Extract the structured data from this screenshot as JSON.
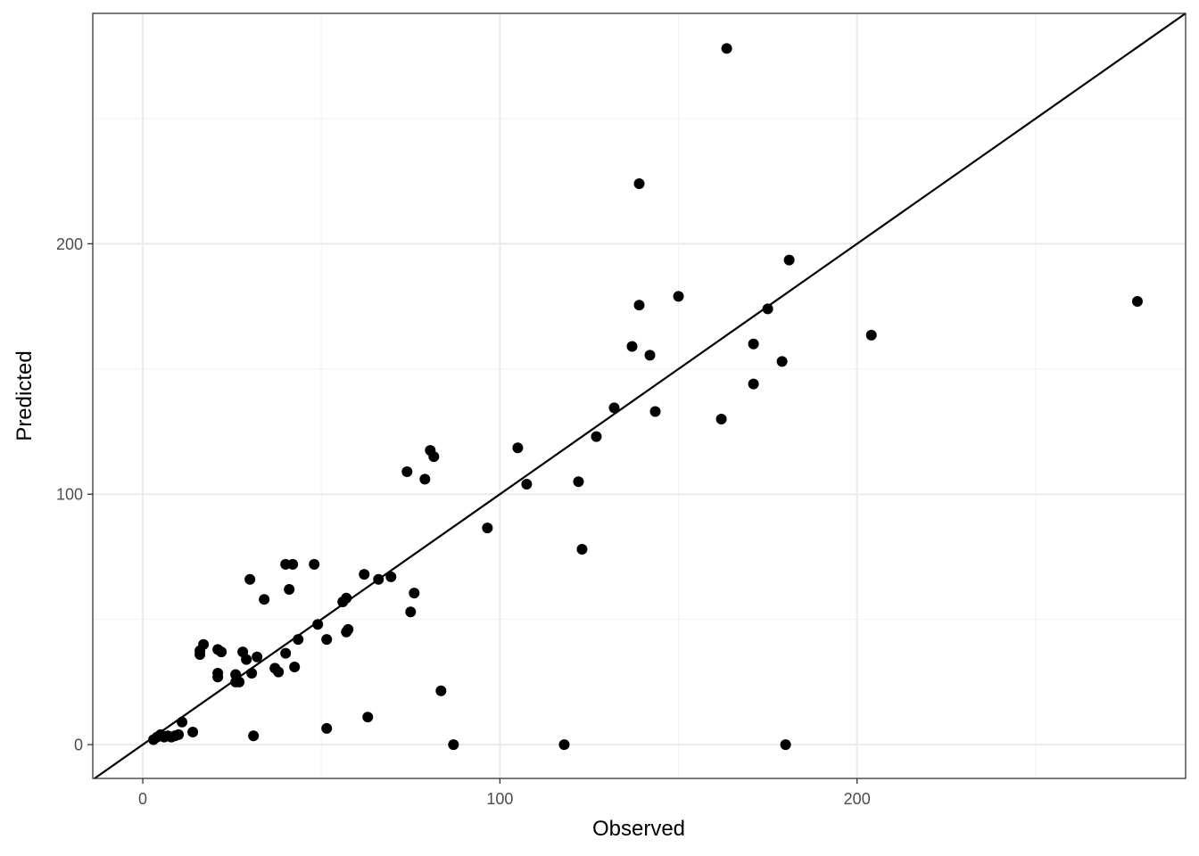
{
  "chart_data": {
    "type": "scatter",
    "title": "",
    "xlabel": "Observed",
    "ylabel": "Predicted",
    "xlim": [
      -14,
      292
    ],
    "ylim": [
      -13.5,
      292
    ],
    "x_ticks": [
      {
        "value": 0,
        "label": "0"
      },
      {
        "value": 100,
        "label": "100"
      },
      {
        "value": 200,
        "label": "200"
      }
    ],
    "y_ticks": [
      {
        "value": 0,
        "label": "0"
      },
      {
        "value": 100,
        "label": "100"
      },
      {
        "value": 200,
        "label": "200"
      }
    ],
    "x_minor_grid": [
      50,
      150,
      250
    ],
    "y_minor_grid": [
      50,
      150,
      250
    ],
    "grid": true,
    "reference_line": {
      "type": "identity",
      "slope": 1,
      "intercept": 0
    },
    "colors": {
      "points": "#000000",
      "line": "#000000",
      "major_grid": "#ebebeb",
      "minor_grid": "#f2f2f2",
      "panel_border": "#333333"
    },
    "series": [
      {
        "points": [
          [
            3,
            2
          ],
          [
            4,
            3
          ],
          [
            5,
            4
          ],
          [
            6,
            3
          ],
          [
            7,
            3.5
          ],
          [
            8,
            3
          ],
          [
            9,
            3.5
          ],
          [
            10,
            4
          ],
          [
            11,
            9
          ],
          [
            14,
            5
          ],
          [
            16,
            36
          ],
          [
            16,
            37.5
          ],
          [
            17,
            40
          ],
          [
            21,
            27
          ],
          [
            21,
            28.5
          ],
          [
            21,
            38
          ],
          [
            22,
            37
          ],
          [
            26,
            28
          ],
          [
            26,
            25
          ],
          [
            27,
            25
          ],
          [
            28,
            37
          ],
          [
            29,
            34
          ],
          [
            30,
            66
          ],
          [
            30.5,
            28.5
          ],
          [
            31,
            3.5
          ],
          [
            32,
            35
          ],
          [
            34,
            58
          ],
          [
            37,
            30.5
          ],
          [
            38,
            29
          ],
          [
            40,
            36.5
          ],
          [
            40,
            72
          ],
          [
            41,
            62
          ],
          [
            42,
            72
          ],
          [
            42.5,
            31
          ],
          [
            43.5,
            42
          ],
          [
            48,
            72
          ],
          [
            49,
            48
          ],
          [
            51.5,
            42
          ],
          [
            51.5,
            6.5
          ],
          [
            56,
            57
          ],
          [
            57,
            58.5
          ],
          [
            57,
            45
          ],
          [
            57.5,
            46
          ],
          [
            62,
            68
          ],
          [
            63,
            11
          ],
          [
            66,
            66
          ],
          [
            69.5,
            67
          ],
          [
            74,
            109
          ],
          [
            75,
            53
          ],
          [
            76,
            60.5
          ],
          [
            79,
            106
          ],
          [
            80.5,
            117.5
          ],
          [
            81.5,
            115
          ],
          [
            83.5,
            21.5
          ],
          [
            87,
            0
          ],
          [
            96.5,
            86.5
          ],
          [
            105,
            118.5
          ],
          [
            107.5,
            104
          ],
          [
            118,
            0
          ],
          [
            122,
            105
          ],
          [
            123,
            78
          ],
          [
            127,
            123
          ],
          [
            132,
            134.5
          ],
          [
            137,
            159
          ],
          [
            139,
            175.5
          ],
          [
            139,
            224
          ],
          [
            142,
            155.5
          ],
          [
            143.5,
            133
          ],
          [
            150,
            179
          ],
          [
            162,
            130
          ],
          [
            163.5,
            278
          ],
          [
            171,
            144
          ],
          [
            171,
            160
          ],
          [
            175,
            174
          ],
          [
            179,
            153
          ],
          [
            180,
            0
          ],
          [
            181,
            193.5
          ],
          [
            204,
            163.5
          ],
          [
            278.5,
            177
          ]
        ]
      }
    ]
  }
}
